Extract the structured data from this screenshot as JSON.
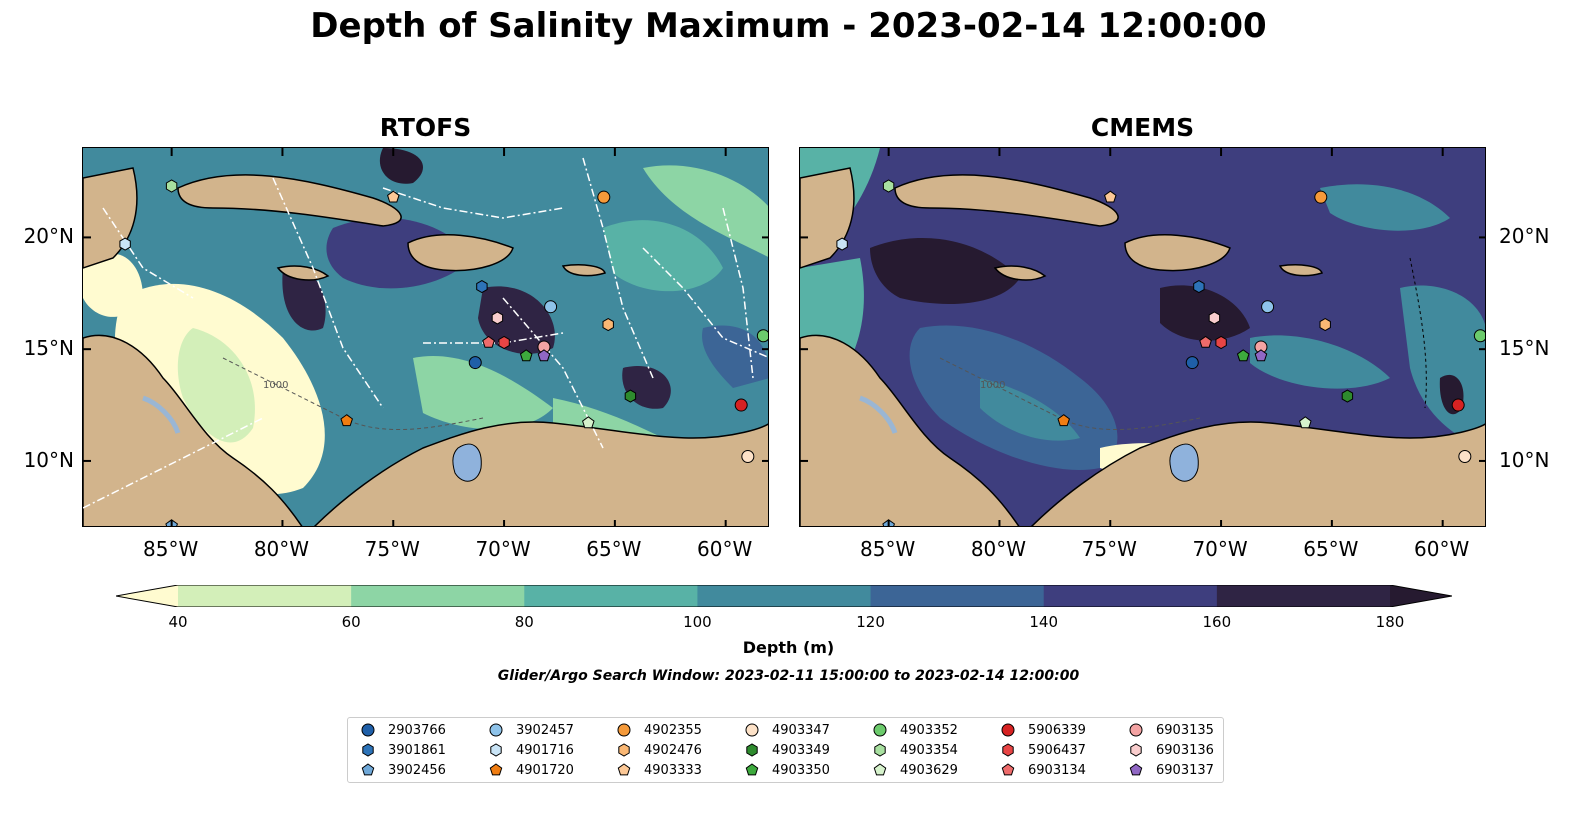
{
  "title": "Depth of Salinity Maximum - 2023-02-14 12:00:00",
  "panels": [
    {
      "id": "rtofs",
      "title": "RTOFS"
    },
    {
      "id": "cmems",
      "title": "CMEMS"
    }
  ],
  "map_extent": {
    "lon": [
      -89,
      -58
    ],
    "lat": [
      7,
      24
    ]
  },
  "lon_ticks": [
    {
      "value": -85,
      "label": "85°W"
    },
    {
      "value": -80,
      "label": "80°W"
    },
    {
      "value": -75,
      "label": "75°W"
    },
    {
      "value": -70,
      "label": "70°W"
    },
    {
      "value": -65,
      "label": "65°W"
    },
    {
      "value": -60,
      "label": "60°W"
    }
  ],
  "lat_ticks": [
    {
      "value": 20,
      "label": "20°N"
    },
    {
      "value": 15,
      "label": "15°N"
    },
    {
      "value": 10,
      "label": "10°N"
    }
  ],
  "colorbar": {
    "label": "Depth (m)",
    "ticks": [
      "40",
      "60",
      "80",
      "100",
      "120",
      "140",
      "160",
      "180"
    ],
    "colors": [
      "#fffbd0",
      "#d3efb9",
      "#8dd5a5",
      "#58b2a6",
      "#418a9d",
      "#3c6596",
      "#3e3e7e",
      "#2f2444",
      "#261a30"
    ]
  },
  "contour_label": "1000",
  "search_window": "Glider/Argo Search Window: 2023-02-11 15:00:00 to 2023-02-14 12:00:00",
  "floats": [
    {
      "id": "2903766",
      "marker": "circle",
      "color": "#1f5fa8",
      "lon": -71.3,
      "lat": 14.4
    },
    {
      "id": "3901861",
      "marker": "hexagon",
      "color": "#2d73b8",
      "lon": -71.0,
      "lat": 17.8
    },
    {
      "id": "3902456",
      "marker": "pentagon",
      "color": "#6fa8d8",
      "lon": -85.0,
      "lat": 7.1
    },
    {
      "id": "3902457",
      "marker": "circle",
      "color": "#8ec3ea",
      "lon": -67.9,
      "lat": 16.9
    },
    {
      "id": "4901716",
      "marker": "hexagon",
      "color": "#c9e4f6",
      "lon": -87.1,
      "lat": 19.7
    },
    {
      "id": "4901720",
      "marker": "pentagon",
      "color": "#f07d12",
      "lon": -77.1,
      "lat": 11.8
    },
    {
      "id": "4902355",
      "marker": "circle",
      "color": "#f59a3a",
      "lon": -65.5,
      "lat": 21.8
    },
    {
      "id": "4902476",
      "marker": "hexagon",
      "color": "#f9b774",
      "lon": -65.3,
      "lat": 16.1
    },
    {
      "id": "4903333",
      "marker": "pentagon",
      "color": "#fcc896",
      "lon": -75.0,
      "lat": 21.8
    },
    {
      "id": "4903347",
      "marker": "circle",
      "color": "#fde2c8",
      "lon": -59.0,
      "lat": 10.2
    },
    {
      "id": "4903349",
      "marker": "hexagon",
      "color": "#2e8b2e",
      "lon": -64.3,
      "lat": 12.9
    },
    {
      "id": "4903350",
      "marker": "pentagon",
      "color": "#3daa3d",
      "lon": -69.0,
      "lat": 14.7
    },
    {
      "id": "4903352",
      "marker": "circle",
      "color": "#6ccb6c",
      "lon": -58.3,
      "lat": 15.6
    },
    {
      "id": "4903354",
      "marker": "hexagon",
      "color": "#a8e0a0",
      "lon": -85.0,
      "lat": 22.3
    },
    {
      "id": "4903629",
      "marker": "pentagon",
      "color": "#d6f2cc",
      "lon": -66.2,
      "lat": 11.7
    },
    {
      "id": "5906339",
      "marker": "circle",
      "color": "#d62222",
      "lon": -59.3,
      "lat": 12.5
    },
    {
      "id": "5906437",
      "marker": "hexagon",
      "color": "#e84545",
      "lon": -70.0,
      "lat": 15.3
    },
    {
      "id": "6903134",
      "marker": "pentagon",
      "color": "#ee6b6b",
      "lon": -70.7,
      "lat": 15.3
    },
    {
      "id": "6903135",
      "marker": "circle",
      "color": "#f4a3a3",
      "lon": -68.2,
      "lat": 15.1
    },
    {
      "id": "6903136",
      "marker": "hexagon",
      "color": "#f9cdcd",
      "lon": -70.3,
      "lat": 16.4
    },
    {
      "id": "6903137",
      "marker": "pentagon",
      "color": "#9067c4",
      "lon": -68.2,
      "lat": 14.7
    }
  ]
}
